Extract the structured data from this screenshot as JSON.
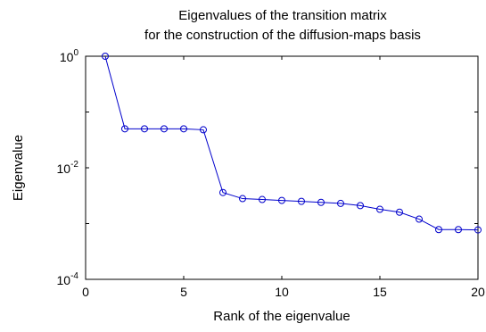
{
  "chart_data": {
    "type": "line",
    "title": [
      "Eigenvalues of the transition matrix",
      "for the construction of the diffusion-maps basis"
    ],
    "xlabel": "Rank of the eigenvalue",
    "ylabel": "Eigenvalue",
    "xlim": [
      0,
      20
    ],
    "ylim": [
      0.0001,
      1
    ],
    "yscale": "log",
    "xticks": [
      0,
      5,
      10,
      15,
      20
    ],
    "yticks": [
      {
        "value": 1,
        "base": "10",
        "exp": "0"
      },
      {
        "value": 0.01,
        "base": "10",
        "exp": "-2"
      },
      {
        "value": 0.0001,
        "base": "10",
        "exp": "-4"
      }
    ],
    "grid": false,
    "series": [
      {
        "color": "#0000cc",
        "marker": "circle",
        "x": [
          1,
          2,
          3,
          4,
          5,
          6,
          7,
          8,
          9,
          10,
          11,
          12,
          13,
          14,
          15,
          16,
          17,
          18,
          19,
          20
        ],
        "y": [
          1.0,
          0.05,
          0.05,
          0.05,
          0.05,
          0.048,
          0.0036,
          0.0028,
          0.0027,
          0.0026,
          0.0025,
          0.0024,
          0.0023,
          0.0021,
          0.0018,
          0.0016,
          0.0012,
          0.00078,
          0.00078,
          0.00077
        ]
      }
    ]
  }
}
